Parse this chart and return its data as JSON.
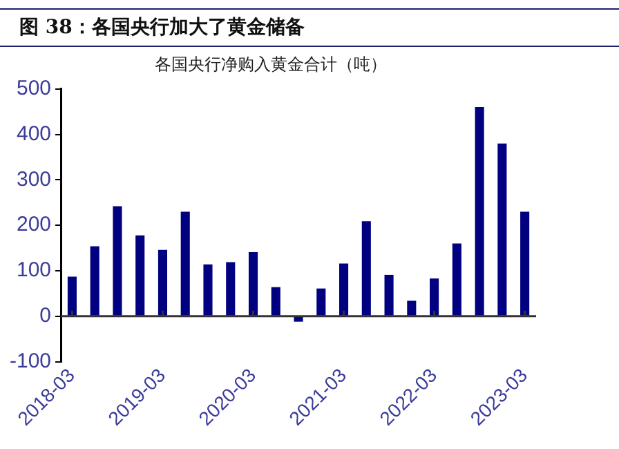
{
  "chart_data": {
    "type": "bar",
    "title": "图 38：各国央行加大了黄金储备",
    "subtitle": "各国央行净购入黄金合计（吨）",
    "categories": [
      "2018-03",
      null,
      null,
      null,
      "2019-03",
      null,
      null,
      null,
      "2020-03",
      null,
      null,
      null,
      "2021-03",
      null,
      null,
      null,
      "2022-03",
      null,
      null,
      null,
      "2023-03"
    ],
    "values": [
      87,
      154,
      242,
      178,
      146,
      230,
      114,
      119,
      141,
      64,
      -12,
      61,
      116,
      209,
      91,
      34,
      83,
      160,
      460,
      380,
      230
    ],
    "color": "#000080",
    "ylim": [
      -100,
      500
    ],
    "yticks": [
      -100,
      0,
      100,
      200,
      300,
      400,
      500
    ],
    "grid": false,
    "legend": false
  }
}
